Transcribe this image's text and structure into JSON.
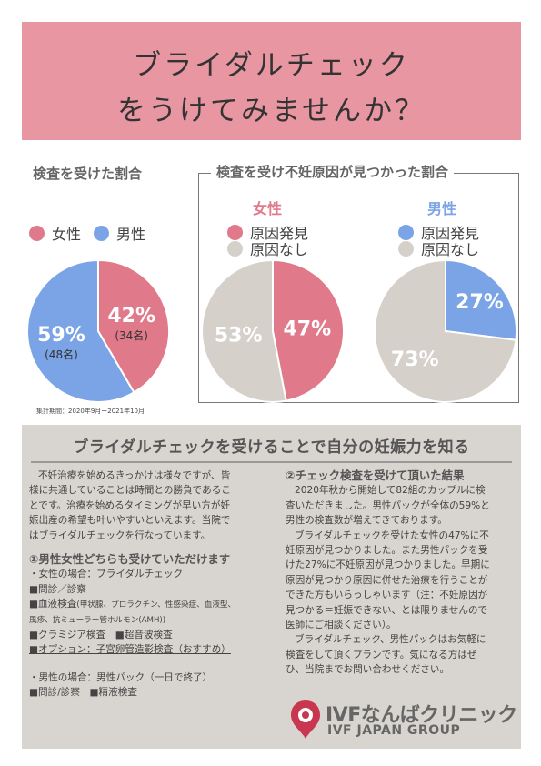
{
  "header": {
    "title_line1": "ブライダルチェック",
    "title_line2": "をうけてみませんか？",
    "bg_color": "#e896a2"
  },
  "stats": {
    "left_title": "検査を受けた割合",
    "legend_female": "女性",
    "legend_male": "男性",
    "right_title": "検査を受け不妊原因が見つかった割合",
    "female_label": "女性",
    "male_label": "男性",
    "legend_found": "原因発見",
    "legend_not_found": "原因なし",
    "period": "集計期間：2020年9月ー2021年10月",
    "colors": {
      "female": "#e07a8a",
      "male": "#7ba4e6",
      "none": "#d6d0ca"
    }
  },
  "chart_data": [
    {
      "type": "pie",
      "title": "検査を受けた割合",
      "slices": [
        {
          "label": "女性",
          "value": 42,
          "text": "42%",
          "count": "(34名)"
        },
        {
          "label": "男性",
          "value": 59,
          "text": "59%",
          "count": "(48名)"
        }
      ]
    },
    {
      "type": "pie",
      "title": "女性",
      "slices": [
        {
          "label": "原因発見",
          "value": 47,
          "text": "47%"
        },
        {
          "label": "原因なし",
          "value": 53,
          "text": "53%"
        }
      ]
    },
    {
      "type": "pie",
      "title": "男性",
      "slices": [
        {
          "label": "原因発見",
          "value": 27,
          "text": "27%"
        },
        {
          "label": "原因なし",
          "value": 73,
          "text": "73%"
        }
      ]
    }
  ],
  "section": {
    "title": "ブライダルチェックを受けることで自分の妊娠力を知る",
    "left": {
      "intro": [
        "不妊治療を始めるきっかけは様々ですが、皆",
        "様に共通していることは時間との勝負であるこ",
        "とです。治療を始めるタイミングが早い方が妊",
        "娠出産の希望も叶いやすいといえます。当院で",
        "はブライダルチェックを行なっています。"
      ],
      "heading": "①男性女性どちらも受けていただけます",
      "female_case": "・女性の場合：ブライダルチェック",
      "item_interview": "■問診／診察",
      "item_blood": "■血液検査",
      "item_blood_detail": "(甲状腺、プロラクチン、性感染症、血液型、",
      "item_blood_detail2": "風疹、抗ミューラー管ホルモン(AMH))",
      "item_chlamydia": "■クラミジア検査　■超音波検査",
      "item_option": "■オプション：子宮卵管造影検査（おすすめ）",
      "male_case": "・男性の場合：男性パック（一日で終了）",
      "male_items": "■問診/診察　■精液検査"
    },
    "right": {
      "heading": "②チェック検査を受けて頂いた結果",
      "body": [
        "2020年秋から開始して82組のカップルに検",
        "査いただきました。男性パックが全体の59%と",
        "男性の検査数が増えてきております。",
        "ブライダルチェックを受けた女性の47%に不",
        "妊原因が見つかりました。また男性パックを受",
        "けた27%に不妊原因が見つかりました。早期に",
        "原因が見つかり原因に併せた治療を行うことが",
        "できた方もいらっしゃいます（注：不妊原因が",
        "見つかる＝妊娠できない、とは限りませんので",
        "医師にご相談ください）。",
        "ブライダルチェック、男性パックはお気軽に",
        "検査をして頂くプランです。気になる方はぜ",
        "ひ、当院までお問い合わせください。"
      ]
    }
  },
  "logo": {
    "name": "IVFなんばクリニック",
    "group": "IVF JAPAN GROUP",
    "color": "#c8374f"
  }
}
